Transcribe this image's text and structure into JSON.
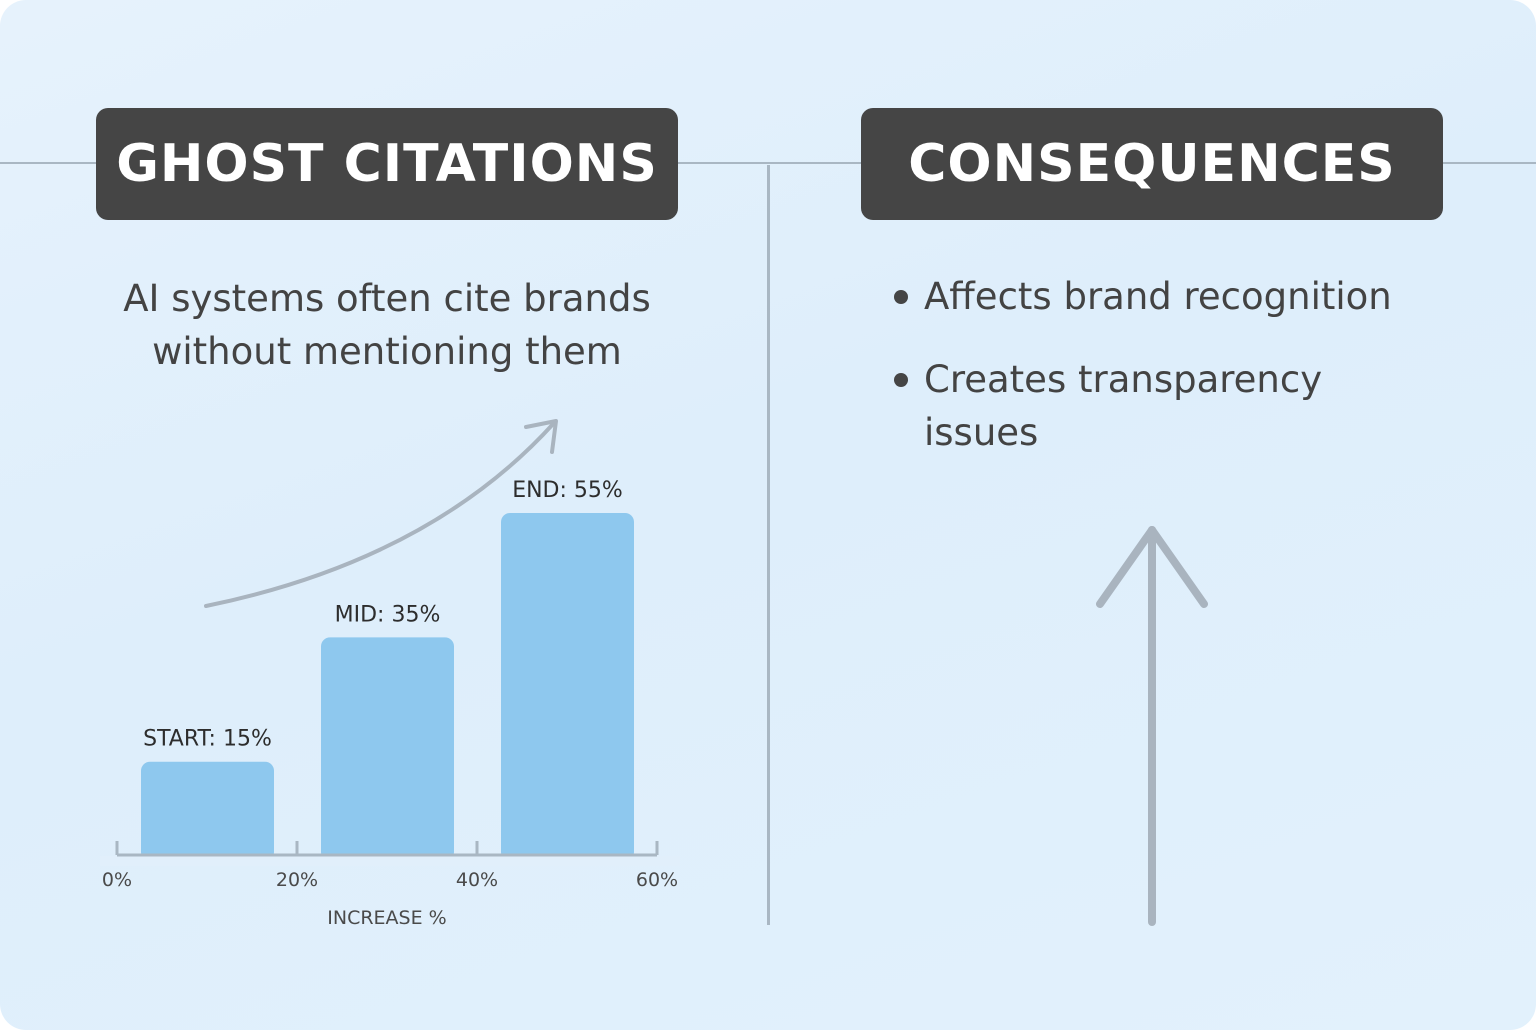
{
  "left_panel": {
    "title": "GHOST CITATIONS",
    "description_lines": [
      "AI systems often cite brands",
      "without mentioning them"
    ]
  },
  "right_panel": {
    "title": "CONSEQUENCES",
    "bullets": [
      "Affects brand recognition",
      "Creates transparency issues"
    ]
  },
  "chart_data": {
    "type": "bar",
    "categories": [
      "START",
      "MID",
      "END"
    ],
    "values": [
      15,
      35,
      55
    ],
    "data_labels": [
      "START: 15%",
      "MID: 35%",
      "END: 55%"
    ],
    "xlabel": "INCREASE %",
    "x_ticks": [
      "0%",
      "20%",
      "40%",
      "60%"
    ],
    "grid": false,
    "bar_color": "#8ec8ee",
    "axis_color": "#a9b7c3"
  },
  "colors": {
    "banner_bg": "#454545",
    "banner_text": "#ffffff",
    "background": "#e2f0fb",
    "body_text": "#434343",
    "divider": "#a9b7c3",
    "arrow": "#a9b4bf"
  },
  "icons": {
    "trend_arrow": "curved-up-arrow-icon",
    "consequence_arrow": "up-arrow-icon"
  }
}
